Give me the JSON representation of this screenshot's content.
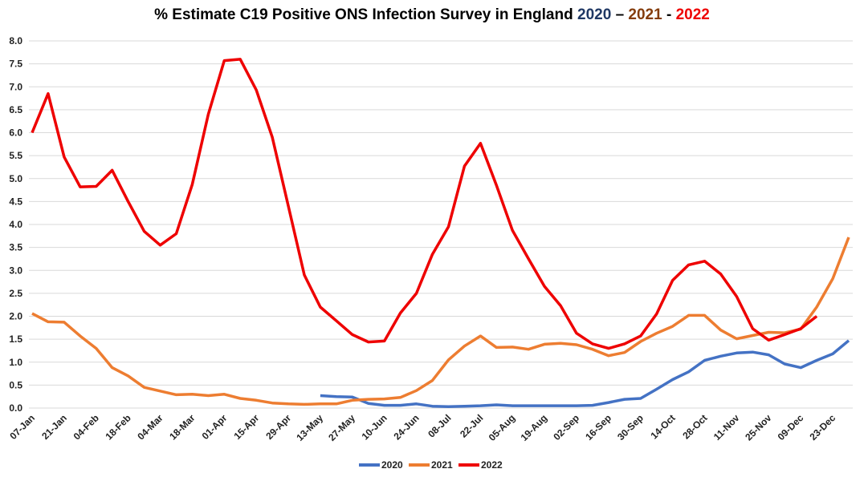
{
  "chart_data": {
    "type": "line",
    "title": {
      "text": "% Estimate C19 Positive ONS Infection Survey in England",
      "year_2020": "2020",
      "sep1": "–",
      "year_2021": "2021",
      "sep2": "-",
      "year_2022": "2022"
    },
    "title_colors": {
      "2020": "#1f3864",
      "2021": "#843c0c",
      "2022": "#ee0000"
    },
    "xlabel": "",
    "ylabel": "",
    "ylim": [
      0,
      8
    ],
    "y_ticks": [
      "0.0",
      "0.5",
      "1.0",
      "1.5",
      "2.0",
      "2.5",
      "3.0",
      "3.5",
      "4.0",
      "4.5",
      "5.0",
      "5.5",
      "6.0",
      "6.5",
      "7.0",
      "7.5",
      "8.0"
    ],
    "x_tick_labels": [
      "07-Jan",
      "21-Jan",
      "04-Feb",
      "18-Feb",
      "04-Mar",
      "18-Mar",
      "01-Apr",
      "15-Apr",
      "29-Apr",
      "13-May",
      "27-May",
      "10-Jun",
      "24-Jun",
      "08-Jul",
      "22-Jul",
      "05-Aug",
      "19-Aug",
      "02-Sep",
      "16-Sep",
      "30-Sep",
      "14-Oct",
      "28-Oct",
      "11-Nov",
      "25-Nov",
      "09-Dec",
      "23-Dec"
    ],
    "x_interval": "weekly",
    "grid": true,
    "legend_position": "bottom",
    "series": [
      {
        "name": "2020",
        "color": "#4472c4",
        "values": [
          null,
          null,
          null,
          null,
          null,
          null,
          null,
          null,
          null,
          null,
          null,
          null,
          null,
          null,
          null,
          null,
          null,
          null,
          0.27,
          0.25,
          0.24,
          0.1,
          0.06,
          0.06,
          0.09,
          0.04,
          0.03,
          0.04,
          0.05,
          0.07,
          0.05,
          0.05,
          0.05,
          0.05,
          0.05,
          0.06,
          0.12,
          0.19,
          0.21,
          0.41,
          0.62,
          0.79,
          1.04,
          1.13,
          1.2,
          1.22,
          1.16,
          0.96,
          0.88,
          1.04,
          1.18,
          1.47
        ]
      },
      {
        "name": "2021",
        "color": "#ed7d31",
        "values": [
          2.06,
          1.88,
          1.87,
          1.57,
          1.3,
          0.88,
          0.7,
          0.45,
          0.37,
          0.29,
          0.3,
          0.27,
          0.3,
          0.21,
          0.17,
          0.11,
          0.09,
          0.08,
          0.09,
          0.09,
          0.17,
          0.19,
          0.2,
          0.23,
          0.38,
          0.6,
          1.05,
          1.35,
          1.57,
          1.32,
          1.33,
          1.28,
          1.39,
          1.41,
          1.38,
          1.28,
          1.14,
          1.21,
          1.45,
          1.63,
          1.78,
          2.02,
          2.02,
          1.7,
          1.51,
          1.58,
          1.65,
          1.64,
          1.72,
          2.2,
          2.82,
          3.72
        ]
      },
      {
        "name": "2022",
        "color": "#ee0000",
        "values": [
          6.0,
          6.85,
          5.47,
          4.82,
          4.83,
          5.18,
          4.5,
          3.85,
          3.55,
          3.8,
          4.87,
          6.4,
          7.57,
          7.6,
          6.93,
          5.9,
          4.4,
          2.9,
          2.2,
          1.9,
          1.6,
          1.44,
          1.46,
          2.07,
          2.5,
          3.35,
          3.95,
          5.27,
          5.77,
          4.85,
          3.87,
          3.25,
          2.65,
          2.23,
          1.63,
          1.4,
          1.3,
          1.4,
          1.57,
          2.05,
          2.78,
          3.12,
          3.2,
          2.92,
          2.43,
          1.73,
          1.48,
          1.6,
          1.73,
          2.0
        ]
      }
    ]
  }
}
